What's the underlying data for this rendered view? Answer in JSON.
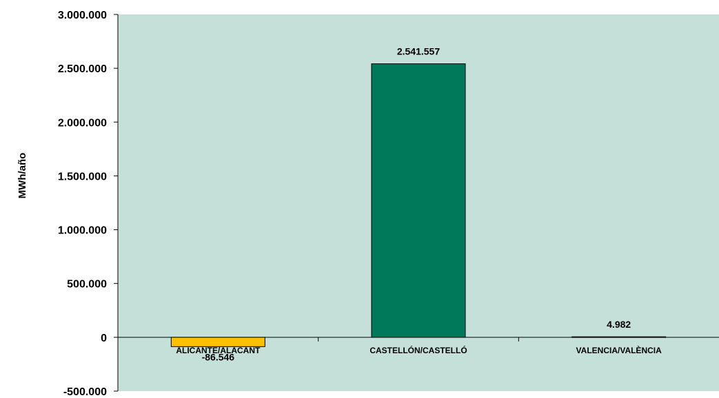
{
  "chart_data": {
    "type": "bar",
    "title": "",
    "xlabel": "",
    "ylabel": "MWh/año",
    "categories": [
      "ALICANTE/ALACANT",
      "CASTELLÓN/CASTELLÓ",
      "VALENCIA/VALÈNCIA"
    ],
    "values": [
      -86546,
      2541557,
      4982
    ],
    "value_labels": [
      "-86.546",
      "2.541.557",
      "4.982"
    ],
    "ylim": [
      -500000,
      3000000
    ],
    "yticks": [
      -500000,
      0,
      500000,
      1000000,
      1500000,
      2000000,
      2500000,
      3000000
    ],
    "ytick_labels": [
      "-500.000",
      "0",
      "500.000",
      "1.000.000",
      "1.500.000",
      "2.000.000",
      "2.500.000",
      "3.000.000"
    ],
    "bar_colors": [
      "#FFC000",
      "#00785A",
      "#00785A"
    ],
    "plot_background": "#C5E0D8",
    "grid": false,
    "legend": "none"
  }
}
